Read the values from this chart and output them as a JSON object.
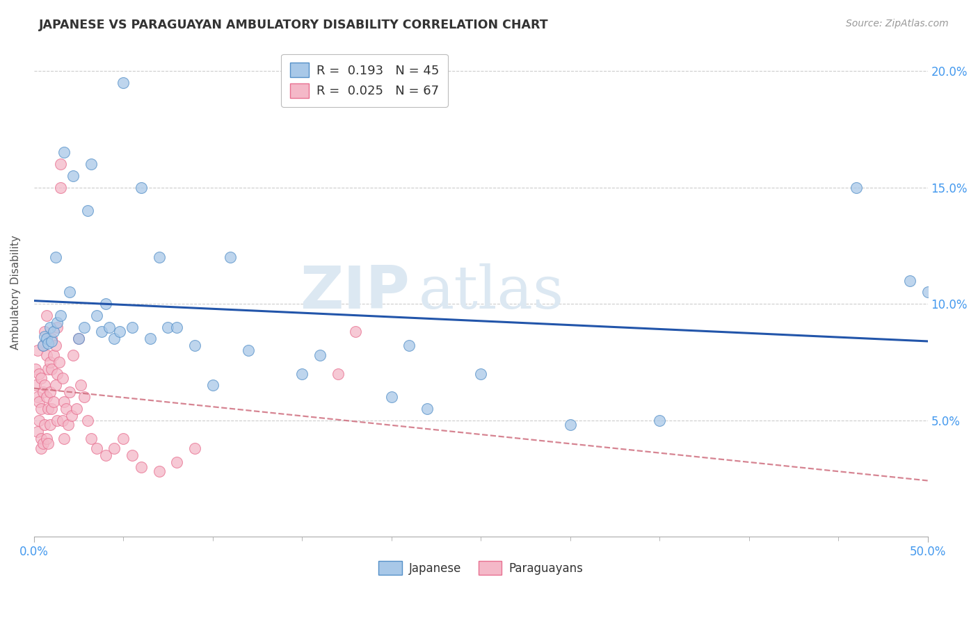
{
  "title": "JAPANESE VS PARAGUAYAN AMBULATORY DISABILITY CORRELATION CHART",
  "source": "Source: ZipAtlas.com",
  "ylabel": "Ambulatory Disability",
  "xlim": [
    0,
    0.5
  ],
  "ylim": [
    0,
    0.21
  ],
  "xtick_positions": [
    0.0,
    0.5
  ],
  "xtick_labels": [
    "0.0%",
    "50.0%"
  ],
  "ytick_positions": [
    0.05,
    0.1,
    0.15,
    0.2
  ],
  "ytick_labels_right": [
    "5.0%",
    "10.0%",
    "15.0%",
    "20.0%"
  ],
  "japanese_color": "#a8c8e8",
  "paraguayan_color": "#f4b8c8",
  "japanese_edge_color": "#5590c8",
  "paraguayan_edge_color": "#e87090",
  "japanese_line_color": "#2255aa",
  "paraguayan_line_color": "#cc6677",
  "legend_R_japanese": "0.193",
  "legend_N_japanese": "45",
  "legend_R_paraguayan": "0.025",
  "legend_N_paraguayan": "67",
  "watermark": "ZIPatlas",
  "japanese_x": [
    0.005,
    0.006,
    0.007,
    0.008,
    0.009,
    0.01,
    0.011,
    0.012,
    0.013,
    0.015,
    0.017,
    0.02,
    0.022,
    0.025,
    0.028,
    0.03,
    0.032,
    0.035,
    0.038,
    0.04,
    0.042,
    0.045,
    0.048,
    0.05,
    0.055,
    0.06,
    0.065,
    0.07,
    0.075,
    0.08,
    0.09,
    0.1,
    0.11,
    0.12,
    0.15,
    0.16,
    0.2,
    0.21,
    0.22,
    0.25,
    0.3,
    0.35,
    0.46,
    0.49,
    0.5
  ],
  "japanese_y": [
    0.082,
    0.086,
    0.085,
    0.083,
    0.09,
    0.084,
    0.088,
    0.12,
    0.092,
    0.095,
    0.165,
    0.105,
    0.155,
    0.085,
    0.09,
    0.14,
    0.16,
    0.095,
    0.088,
    0.1,
    0.09,
    0.085,
    0.088,
    0.195,
    0.09,
    0.15,
    0.085,
    0.12,
    0.09,
    0.09,
    0.082,
    0.065,
    0.12,
    0.08,
    0.07,
    0.078,
    0.06,
    0.082,
    0.055,
    0.07,
    0.048,
    0.05,
    0.15,
    0.11,
    0.105
  ],
  "paraguayan_x": [
    0.001,
    0.001,
    0.002,
    0.002,
    0.002,
    0.003,
    0.003,
    0.003,
    0.004,
    0.004,
    0.004,
    0.004,
    0.005,
    0.005,
    0.005,
    0.006,
    0.006,
    0.006,
    0.007,
    0.007,
    0.007,
    0.007,
    0.008,
    0.008,
    0.008,
    0.009,
    0.009,
    0.009,
    0.01,
    0.01,
    0.01,
    0.011,
    0.011,
    0.012,
    0.012,
    0.013,
    0.013,
    0.013,
    0.014,
    0.015,
    0.015,
    0.016,
    0.016,
    0.017,
    0.017,
    0.018,
    0.019,
    0.02,
    0.021,
    0.022,
    0.024,
    0.025,
    0.026,
    0.028,
    0.03,
    0.032,
    0.035,
    0.04,
    0.045,
    0.05,
    0.055,
    0.06,
    0.07,
    0.08,
    0.09,
    0.17,
    0.18
  ],
  "paraguayan_y": [
    0.072,
    0.065,
    0.08,
    0.06,
    0.045,
    0.07,
    0.058,
    0.05,
    0.068,
    0.055,
    0.042,
    0.038,
    0.082,
    0.062,
    0.04,
    0.088,
    0.065,
    0.048,
    0.095,
    0.078,
    0.06,
    0.042,
    0.072,
    0.055,
    0.04,
    0.075,
    0.062,
    0.048,
    0.085,
    0.072,
    0.055,
    0.078,
    0.058,
    0.082,
    0.065,
    0.09,
    0.07,
    0.05,
    0.075,
    0.16,
    0.15,
    0.068,
    0.05,
    0.058,
    0.042,
    0.055,
    0.048,
    0.062,
    0.052,
    0.078,
    0.055,
    0.085,
    0.065,
    0.06,
    0.05,
    0.042,
    0.038,
    0.035,
    0.038,
    0.042,
    0.035,
    0.03,
    0.028,
    0.032,
    0.038,
    0.07,
    0.088
  ]
}
